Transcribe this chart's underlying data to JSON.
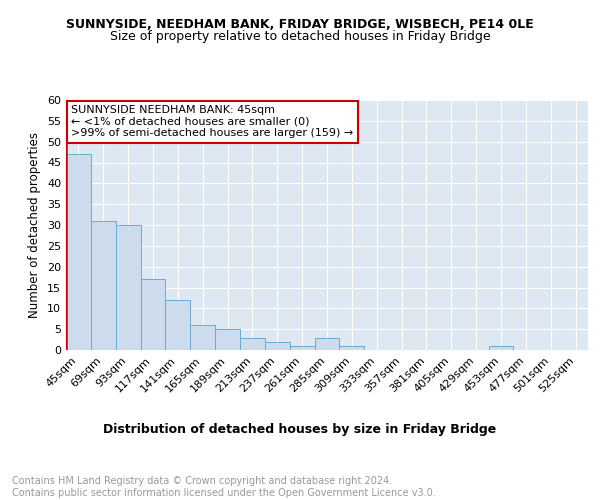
{
  "title": "SUNNYSIDE, NEEDHAM BANK, FRIDAY BRIDGE, WISBECH, PE14 0LE",
  "subtitle": "Size of property relative to detached houses in Friday Bridge",
  "xlabel": "Distribution of detached houses by size in Friday Bridge",
  "ylabel": "Number of detached properties",
  "categories": [
    "45sqm",
    "69sqm",
    "93sqm",
    "117sqm",
    "141sqm",
    "165sqm",
    "189sqm",
    "213sqm",
    "237sqm",
    "261sqm",
    "285sqm",
    "309sqm",
    "333sqm",
    "357sqm",
    "381sqm",
    "405sqm",
    "429sqm",
    "453sqm",
    "477sqm",
    "501sqm",
    "525sqm"
  ],
  "values": [
    47,
    31,
    30,
    17,
    12,
    6,
    5,
    3,
    2,
    1,
    3,
    1,
    0,
    0,
    0,
    0,
    0,
    1,
    0,
    0,
    0
  ],
  "bar_color": "#ccdcec",
  "bar_edge_color": "#6aaad4",
  "highlight_bar_index": 0,
  "highlight_bar_edge_color": "#cc0000",
  "annotation_box_text": "SUNNYSIDE NEEDHAM BANK: 45sqm\n← <1% of detached houses are smaller (0)\n>99% of semi-detached houses are larger (159) →",
  "annotation_box_edge_color": "#cc0000",
  "ylim": [
    0,
    60
  ],
  "yticks": [
    0,
    5,
    10,
    15,
    20,
    25,
    30,
    35,
    40,
    45,
    50,
    55,
    60
  ],
  "grid_color": "#dde8f2",
  "footer_text": "Contains HM Land Registry data © Crown copyright and database right 2024.\nContains public sector information licensed under the Open Government Licence v3.0.",
  "title_fontsize": 9,
  "subtitle_fontsize": 9,
  "xlabel_fontsize": 9,
  "ylabel_fontsize": 8.5,
  "tick_fontsize": 8,
  "annotation_fontsize": 8,
  "footer_fontsize": 7
}
